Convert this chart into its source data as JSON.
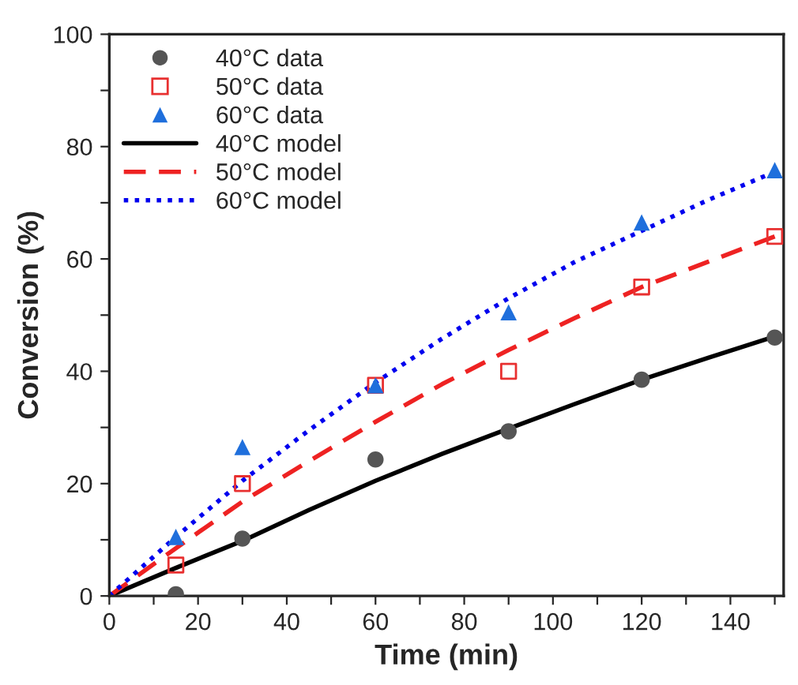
{
  "chart_data": {
    "type": "scatter",
    "xlabel": "Time (min)",
    "ylabel": "Conversion (%)",
    "xlim": [
      0,
      152
    ],
    "ylim": [
      0,
      100
    ],
    "xticks": [
      0,
      {
        "value": 10,
        "label": null
      },
      20,
      {
        "value": 30,
        "label": null
      },
      40,
      {
        "value": 50,
        "label": null
      },
      60,
      {
        "value": 70,
        "label": null
      },
      80,
      {
        "value": 90,
        "label": null
      },
      100,
      {
        "value": 110,
        "label": null
      },
      120,
      {
        "value": 130,
        "label": null
      },
      140,
      {
        "value": 150,
        "label": null
      }
    ],
    "yticks": [
      0,
      {
        "value": 10,
        "label": null
      },
      20,
      {
        "value": 30,
        "label": null
      },
      40,
      {
        "value": 50,
        "label": null
      },
      60,
      {
        "value": 70,
        "label": null
      },
      80,
      {
        "value": 90,
        "label": null
      },
      100
    ],
    "grid": false,
    "legend": "top left",
    "series": [
      {
        "name": "40°C data",
        "marker": "circle",
        "color": "#555555",
        "x": [
          15,
          30,
          60,
          90,
          120,
          150
        ],
        "values": [
          0.3,
          10.2,
          24.3,
          29.3,
          38.5,
          46
        ]
      },
      {
        "name": "50°C data",
        "marker": "square",
        "color": "#e83030",
        "x": [
          15,
          30,
          60,
          90,
          120,
          150
        ],
        "values": [
          5.5,
          20,
          37.5,
          40,
          55,
          64
        ]
      },
      {
        "name": "60°C data",
        "marker": "triangle",
        "color": "#1f6fdc",
        "x": [
          15,
          30,
          60,
          90,
          120,
          150
        ],
        "values": [
          10.5,
          26.5,
          37.5,
          50.5,
          66.5,
          75.8
        ]
      },
      {
        "name": "40°C model",
        "type": "line",
        "line_style": "solid",
        "color": "#000000",
        "x": [
          0,
          15,
          30,
          45,
          60,
          75,
          90,
          105,
          120,
          135,
          150
        ],
        "values": [
          0,
          5,
          9.8,
          15.3,
          20.5,
          25.3,
          29.8,
          34.2,
          38.5,
          42.4,
          46.2
        ]
      },
      {
        "name": "50°C model",
        "type": "line",
        "line_style": "dashed",
        "color": "#ee2222",
        "x": [
          0,
          15,
          30,
          45,
          60,
          75,
          90,
          105,
          120,
          135,
          150
        ],
        "values": [
          0,
          8.5,
          16.8,
          24,
          31,
          37.7,
          43.8,
          49.5,
          55,
          59.5,
          64
        ]
      },
      {
        "name": "60°C model",
        "type": "line",
        "line_style": "dotted",
        "color": "#0000ee",
        "x": [
          0,
          15,
          30,
          45,
          60,
          75,
          90,
          105,
          120,
          135,
          150
        ],
        "values": [
          0,
          10.5,
          20.5,
          29.5,
          38,
          45.8,
          53,
          59.5,
          65,
          70.5,
          75.5
        ]
      }
    ]
  }
}
